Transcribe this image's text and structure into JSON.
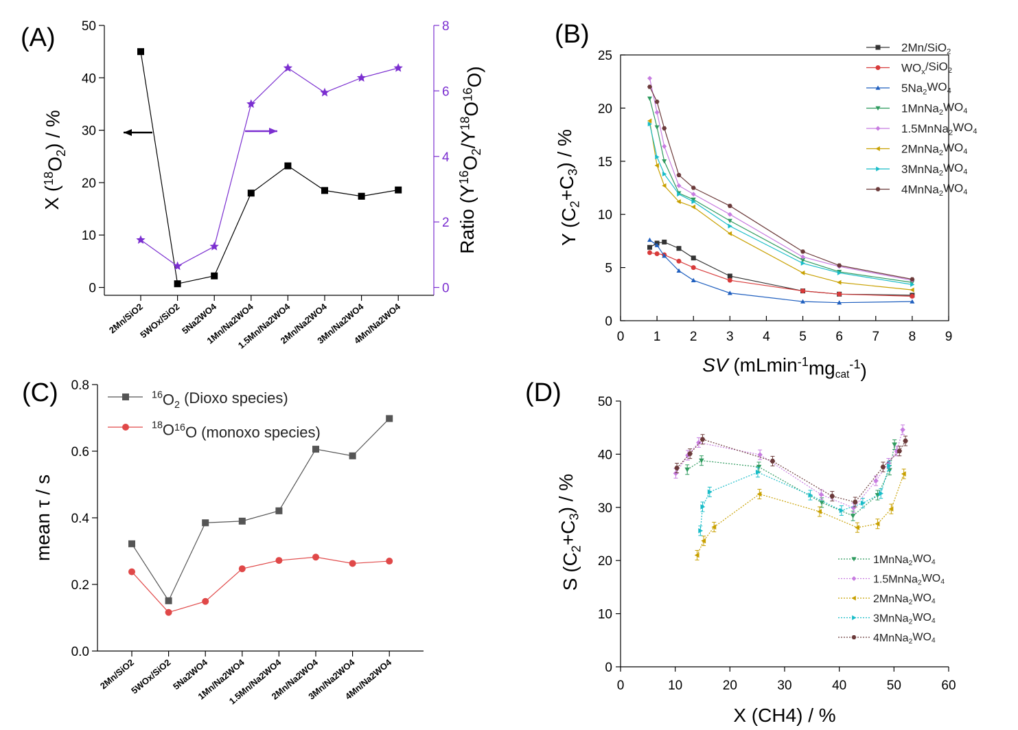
{
  "chart_data": [
    {
      "panel": "(A)",
      "type": "line",
      "categories": [
        "2Mn/SiO2",
        "5WOx/SiO2",
        "5Na2WO4",
        "1Mn/Na2WO4",
        "1.5Mn/Na2WO4",
        "2Mn/Na2WO4",
        "3Mn/Na2WO4",
        "4Mn/Na2WO4"
      ],
      "series": [
        {
          "axis": "left",
          "marker": "square",
          "color": "#000000",
          "values": [
            45.0,
            0.7,
            2.2,
            18.0,
            23.2,
            18.5,
            17.4,
            18.6
          ]
        },
        {
          "axis": "right",
          "marker": "star",
          "color": "#7b2fd0",
          "values": [
            1.45,
            0.65,
            1.25,
            5.6,
            6.7,
            5.95,
            6.4,
            6.7
          ]
        }
      ],
      "ylabel": "X (18O2) / %",
      "ylabel_parts": [
        "X (",
        "18",
        "O",
        "2",
        ") / %"
      ],
      "y2label": "Ratio (Y16O2/Y18O16O)",
      "y2label_parts": [
        "Ratio (Y",
        "16",
        "O",
        "2",
        "/Y",
        "18",
        "O",
        "16",
        "O)"
      ],
      "ylim": [
        -1.5,
        50
      ],
      "y2lim": [
        -0.24,
        8
      ],
      "yticks": [
        0,
        10,
        20,
        30,
        40,
        50
      ],
      "y2ticks": [
        0,
        2,
        4,
        6,
        8
      ],
      "y2_color": "#7b2fd0"
    },
    {
      "panel": "(B)",
      "type": "line",
      "xlim": [
        0,
        9
      ],
      "ylim": [
        0,
        25
      ],
      "xticks": [
        0,
        1,
        2,
        3,
        4,
        5,
        6,
        7,
        8,
        9
      ],
      "yticks": [
        0,
        5,
        10,
        15,
        20,
        25
      ],
      "xlabel": "SV (mLmin-1mgcat-1)",
      "xlabel_parts": [
        "SV",
        " (mLmin",
        "-1",
        "mg",
        "cat",
        "-1",
        ")"
      ],
      "ylabel": "Y (C2+C3) / %",
      "ylabel_parts": [
        "Y (C",
        "2",
        "+C",
        "3",
        ") / %"
      ],
      "legend_position": "top-right",
      "series": [
        {
          "name": "2Mn/SiO2",
          "name_parts": [
            "2Mn/SiO",
            "2",
            ""
          ],
          "color": "#333333",
          "marker": "square",
          "x": [
            0.8,
            1.0,
            1.2,
            1.6,
            2.0,
            3.0,
            5.0,
            6.0,
            8.0
          ],
          "y": [
            6.9,
            7.3,
            7.4,
            6.8,
            5.9,
            4.2,
            2.8,
            2.5,
            2.4
          ]
        },
        {
          "name": "WOx/SiO2",
          "name_parts": [
            "WO",
            "x",
            "/SiO",
            "2",
            ""
          ],
          "color": "#d83a3a",
          "marker": "circle",
          "x": [
            0.8,
            1.0,
            1.2,
            1.6,
            2.0,
            3.0,
            5.0,
            6.0,
            8.0
          ],
          "y": [
            6.4,
            6.3,
            6.2,
            5.6,
            5.0,
            3.8,
            2.8,
            2.5,
            2.3
          ]
        },
        {
          "name": "5Na2WO4",
          "name_parts": [
            "5Na",
            "2",
            "WO",
            "4",
            ""
          ],
          "color": "#1f5fbf",
          "marker": "triangle-up",
          "x": [
            0.8,
            1.0,
            1.2,
            1.6,
            2.0,
            3.0,
            5.0,
            6.0,
            8.0
          ],
          "y": [
            7.6,
            7.1,
            6.1,
            4.7,
            3.8,
            2.6,
            1.8,
            1.7,
            1.8
          ]
        },
        {
          "name": "1MnNa2WO4",
          "name_parts": [
            "1MnNa",
            "2",
            "WO",
            "4",
            ""
          ],
          "color": "#2e9a5e",
          "marker": "triangle-down",
          "x": [
            0.8,
            1.0,
            1.2,
            1.6,
            2.0,
            3.0,
            5.0,
            6.0,
            8.0
          ],
          "y": [
            20.9,
            18.2,
            15.0,
            12.0,
            11.4,
            9.4,
            5.7,
            4.6,
            3.6
          ]
        },
        {
          "name": "1.5MnNa2WO4",
          "name_parts": [
            "1.5MnNa",
            "2",
            "WO",
            "4",
            ""
          ],
          "color": "#c77ce0",
          "marker": "diamond",
          "x": [
            0.8,
            1.0,
            1.2,
            1.6,
            2.0,
            3.0,
            5.0,
            6.0,
            8.0
          ],
          "y": [
            22.8,
            19.6,
            16.4,
            12.7,
            11.9,
            10.0,
            6.0,
            5.1,
            3.8
          ]
        },
        {
          "name": "2MnNa2WO4",
          "name_parts": [
            "2MnNa",
            "2",
            "WO",
            "4",
            ""
          ],
          "color": "#c8a000",
          "marker": "triangle-left",
          "x": [
            0.8,
            1.0,
            1.2,
            1.6,
            2.0,
            3.0,
            5.0,
            6.0,
            8.0
          ],
          "y": [
            18.8,
            14.6,
            12.7,
            11.2,
            10.7,
            8.2,
            4.5,
            3.6,
            2.9
          ]
        },
        {
          "name": "3MnNa2WO4",
          "name_parts": [
            "3MnNa",
            "2",
            "WO",
            "4",
            ""
          ],
          "color": "#18bcc8",
          "marker": "triangle-right",
          "x": [
            0.8,
            1.0,
            1.2,
            1.6,
            2.0,
            3.0,
            5.0,
            6.0,
            8.0
          ],
          "y": [
            18.5,
            15.4,
            13.8,
            11.9,
            11.2,
            8.9,
            5.4,
            4.5,
            3.4
          ]
        },
        {
          "name": "4MnNa2WO4",
          "name_parts": [
            "4MnNa",
            "2",
            "WO",
            "4",
            ""
          ],
          "color": "#6b3a3a",
          "marker": "hexagon",
          "x": [
            0.8,
            1.0,
            1.2,
            1.6,
            2.0,
            3.0,
            5.0,
            6.0,
            8.0
          ],
          "y": [
            22.0,
            20.6,
            18.1,
            13.7,
            12.5,
            10.8,
            6.5,
            5.2,
            3.9
          ]
        }
      ]
    },
    {
      "panel": "(C)",
      "type": "line",
      "categories": [
        "2Mn/SiO2",
        "5WOx/SiO2",
        "5Na2WO4",
        "1Mn/Na2WO4",
        "1.5Mn/Na2WO4",
        "2Mn/Na2WO4",
        "3Mn/Na2WO4",
        "4Mn/Na2WO4"
      ],
      "ylim": [
        0,
        0.8
      ],
      "yticks": [
        "0.0",
        "0.2",
        "0.4",
        "0.6",
        "0.8"
      ],
      "ylabel": "mean τ / s",
      "legend_position": "top-left",
      "series": [
        {
          "name": "16O2 (Dioxo species)",
          "name_parts": [
            "",
            "16",
            "O",
            "2",
            " (Dioxo species)"
          ],
          "color": "#555555",
          "marker": "square",
          "values": [
            0.322,
            0.151,
            0.385,
            0.39,
            0.421,
            0.606,
            0.586,
            0.698
          ]
        },
        {
          "name": "18O16O (monoxo species)",
          "name_parts": [
            "",
            "18",
            "O",
            "16",
            "O (monoxo species)"
          ],
          "color": "#e04848",
          "marker": "circle",
          "values": [
            0.238,
            0.116,
            0.149,
            0.247,
            0.272,
            0.282,
            0.263,
            0.27
          ]
        }
      ]
    },
    {
      "panel": "(D)",
      "type": "line",
      "xlim": [
        0,
        60
      ],
      "ylim": [
        0,
        50
      ],
      "xticks": [
        0,
        10,
        20,
        30,
        40,
        50,
        60
      ],
      "yticks": [
        0,
        10,
        20,
        30,
        40,
        50
      ],
      "xlabel": "X (CH4) / %",
      "ylabel": "S (C2+C3) / %",
      "ylabel_parts": [
        "S (C",
        "2",
        "+C",
        "3",
        ") / %"
      ],
      "legend_position": "bottom-right",
      "series": [
        {
          "name": "1MnNa2WO4",
          "name_parts": [
            "1MnNa",
            "2",
            "WO",
            "4",
            ""
          ],
          "color": "#2e9a5e",
          "marker": "triangle-down",
          "x": [
            12.2,
            14.8,
            25.3,
            36.8,
            42.5,
            47.0,
            49.2,
            50.1
          ],
          "y": [
            37.1,
            38.8,
            37.6,
            30.9,
            28.4,
            32.3,
            37.0,
            41.8
          ]
        },
        {
          "name": "1.5MnNa2WO4",
          "name_parts": [
            "1.5MnNa",
            "2",
            "WO",
            "4",
            ""
          ],
          "color": "#c77ce0",
          "marker": "diamond",
          "x": [
            10.1,
            12.3,
            14.3,
            25.5,
            36.7,
            42.6,
            46.7,
            49.0,
            50.5,
            51.6
          ],
          "y": [
            36.4,
            39.8,
            42.2,
            39.9,
            32.4,
            29.9,
            35.0,
            38.3,
            40.6,
            44.6
          ]
        },
        {
          "name": "2MnNa2WO4",
          "name_parts": [
            "2MnNa",
            "2",
            "WO",
            "4",
            ""
          ],
          "color": "#c8a000",
          "marker": "triangle-left",
          "x": [
            14.0,
            15.2,
            17.1,
            25.4,
            36.4,
            43.3,
            47.0,
            49.5,
            51.8
          ],
          "y": [
            21.0,
            23.7,
            26.3,
            32.5,
            29.2,
            26.2,
            26.9,
            29.7,
            36.3
          ]
        },
        {
          "name": "3MnNa2WO4",
          "name_parts": [
            "3MnNa",
            "2",
            "WO",
            "4",
            ""
          ],
          "color": "#18bcc8",
          "marker": "triangle-right",
          "x": [
            14.6,
            15.0,
            16.3,
            25.1,
            34.7,
            40.4,
            44.3,
            47.6,
            49.1
          ],
          "y": [
            25.6,
            30.1,
            32.9,
            36.6,
            32.3,
            29.4,
            30.8,
            32.6,
            37.8
          ]
        },
        {
          "name": "4MnNa2WO4",
          "name_parts": [
            "4MnNa",
            "2",
            "WO",
            "4",
            ""
          ],
          "color": "#6b3a3a",
          "marker": "hexagon",
          "x": [
            10.3,
            12.7,
            15.0,
            27.8,
            38.7,
            42.9,
            48.0,
            51.0,
            52.1
          ],
          "y": [
            37.4,
            40.1,
            42.8,
            38.7,
            32.1,
            31.0,
            37.6,
            40.6,
            42.5
          ]
        }
      ]
    }
  ]
}
